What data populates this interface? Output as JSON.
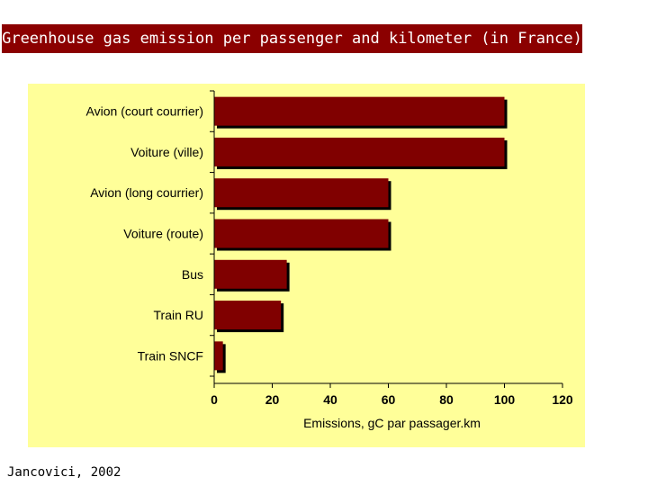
{
  "header": {
    "title": "Greenhouse gas emission per passenger and kilometer (in France)"
  },
  "footer": {
    "credit": "Jancovici, 2002"
  },
  "chart_data": {
    "type": "bar",
    "orientation": "horizontal",
    "categories": [
      "Avion (court courrier)",
      "Voiture (ville)",
      "Avion (long courrier)",
      "Voiture (route)",
      "Bus",
      "Train RU",
      "Train SNCF"
    ],
    "values": [
      100,
      100,
      60,
      60,
      25,
      23,
      3
    ],
    "xlabel": "Emissions, gC par passager.km",
    "ylabel": "",
    "xlim": [
      0,
      120
    ],
    "xticks": [
      0,
      20,
      40,
      60,
      80,
      100,
      120
    ],
    "grid": false,
    "legend": "none",
    "colors": {
      "bar": "#800000",
      "panel": "#ffff99",
      "shadow": "#000000"
    }
  }
}
